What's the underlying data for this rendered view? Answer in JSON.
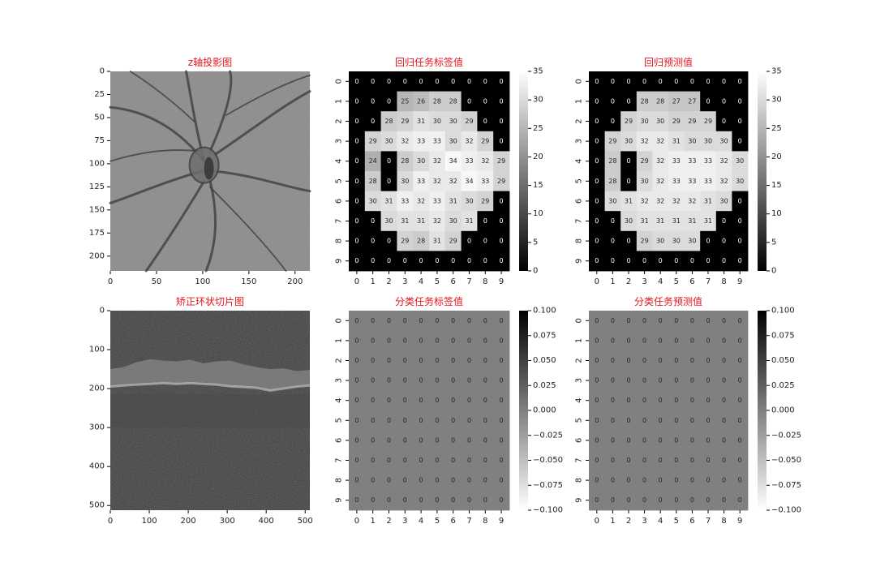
{
  "chart_data": [
    {
      "type": "image",
      "title": "z轴投影图",
      "x_ticks": [
        "0",
        "50",
        "100",
        "150",
        "200"
      ],
      "y_ticks": [
        "0",
        "25",
        "50",
        "75",
        "100",
        "125",
        "150",
        "175",
        "200"
      ],
      "xlim": [
        0,
        216
      ],
      "ylim": [
        216,
        0
      ],
      "content": "grayscale fundus en-face projection with retinal vessels and optic disc"
    },
    {
      "type": "heatmap",
      "title": "回归任务标签值",
      "x_ticks": [
        "0",
        "1",
        "2",
        "3",
        "4",
        "5",
        "6",
        "7",
        "8",
        "9"
      ],
      "y_ticks": [
        "0",
        "1",
        "2",
        "3",
        "4",
        "5",
        "6",
        "7",
        "8",
        "9"
      ],
      "colormap": "gray",
      "vmin": 0,
      "vmax": 35,
      "colorbar_ticks": [
        "0",
        "5",
        "10",
        "15",
        "20",
        "25",
        "30",
        "35"
      ],
      "values": [
        [
          0,
          0,
          0,
          0,
          0,
          0,
          0,
          0,
          0,
          0
        ],
        [
          0,
          0,
          0,
          25,
          26,
          28,
          28,
          0,
          0,
          0
        ],
        [
          0,
          0,
          28,
          29,
          31,
          30,
          30,
          29,
          0,
          0
        ],
        [
          0,
          29,
          30,
          32,
          33,
          33,
          30,
          32,
          29,
          0
        ],
        [
          0,
          24,
          0,
          28,
          30,
          32,
          34,
          33,
          32,
          29
        ],
        [
          0,
          28,
          0,
          30,
          33,
          32,
          32,
          34,
          33,
          29
        ],
        [
          0,
          30,
          31,
          33,
          32,
          33,
          31,
          30,
          29,
          0
        ],
        [
          0,
          0,
          30,
          31,
          31,
          32,
          30,
          31,
          0,
          0
        ],
        [
          0,
          0,
          0,
          29,
          28,
          31,
          29,
          0,
          0,
          0
        ],
        [
          0,
          0,
          0,
          0,
          0,
          0,
          0,
          0,
          0,
          0
        ]
      ]
    },
    {
      "type": "heatmap",
      "title": "回归预测值",
      "x_ticks": [
        "0",
        "1",
        "2",
        "3",
        "4",
        "5",
        "6",
        "7",
        "8",
        "9"
      ],
      "y_ticks": [
        "0",
        "1",
        "2",
        "3",
        "4",
        "5",
        "6",
        "7",
        "8",
        "9"
      ],
      "colormap": "gray",
      "vmin": 0,
      "vmax": 35,
      "colorbar_ticks": [
        "0",
        "5",
        "10",
        "15",
        "20",
        "25",
        "30",
        "35"
      ],
      "values": [
        [
          0,
          0,
          0,
          0,
          0,
          0,
          0,
          0,
          0,
          0
        ],
        [
          0,
          0,
          0,
          28,
          28,
          27,
          27,
          0,
          0,
          0
        ],
        [
          0,
          0,
          29,
          30,
          30,
          29,
          29,
          29,
          0,
          0
        ],
        [
          0,
          29,
          30,
          32,
          32,
          31,
          30,
          30,
          30,
          0
        ],
        [
          0,
          28,
          0,
          29,
          32,
          33,
          33,
          33,
          32,
          30
        ],
        [
          0,
          28,
          0,
          30,
          32,
          33,
          33,
          33,
          32,
          30
        ],
        [
          0,
          30,
          31,
          32,
          32,
          32,
          32,
          31,
          30,
          0
        ],
        [
          0,
          0,
          30,
          31,
          31,
          31,
          31,
          31,
          0,
          0
        ],
        [
          0,
          0,
          0,
          29,
          30,
          30,
          30,
          0,
          0,
          0
        ],
        [
          0,
          0,
          0,
          0,
          0,
          0,
          0,
          0,
          0,
          0
        ]
      ]
    },
    {
      "type": "image",
      "title": "矫正环状切片图",
      "x_ticks": [
        "0",
        "100",
        "200",
        "300",
        "400",
        "500"
      ],
      "y_ticks": [
        "0",
        "100",
        "200",
        "300",
        "400",
        "500"
      ],
      "xlim": [
        0,
        512
      ],
      "ylim": [
        512,
        0
      ],
      "content": "grayscale circular OCT B-scan slice with bright retinal layer band"
    },
    {
      "type": "heatmap",
      "title": "分类任务标签值",
      "x_ticks": [
        "0",
        "1",
        "2",
        "3",
        "4",
        "5",
        "6",
        "7",
        "8",
        "9"
      ],
      "y_ticks": [
        "0",
        "1",
        "2",
        "3",
        "4",
        "5",
        "6",
        "7",
        "8",
        "9"
      ],
      "colormap": "gray_r",
      "vmin": -0.1,
      "vmax": 0.1,
      "colorbar_ticks": [
        "0.100",
        "0.075",
        "0.050",
        "0.025",
        "0.000",
        "−0.025",
        "−0.050",
        "−0.075",
        "−0.100"
      ],
      "values": [
        [
          0,
          0,
          0,
          0,
          0,
          0,
          0,
          0,
          0,
          0
        ],
        [
          0,
          0,
          0,
          0,
          0,
          0,
          0,
          0,
          0,
          0
        ],
        [
          0,
          0,
          0,
          0,
          0,
          0,
          0,
          0,
          0,
          0
        ],
        [
          0,
          0,
          0,
          0,
          0,
          0,
          0,
          0,
          0,
          0
        ],
        [
          0,
          0,
          0,
          0,
          0,
          0,
          0,
          0,
          0,
          0
        ],
        [
          0,
          0,
          0,
          0,
          0,
          0,
          0,
          0,
          0,
          0
        ],
        [
          0,
          0,
          0,
          0,
          0,
          0,
          0,
          0,
          0,
          0
        ],
        [
          0,
          0,
          0,
          0,
          0,
          0,
          0,
          0,
          0,
          0
        ],
        [
          0,
          0,
          0,
          0,
          0,
          0,
          0,
          0,
          0,
          0
        ],
        [
          0,
          0,
          0,
          0,
          0,
          0,
          0,
          0,
          0,
          0
        ]
      ]
    },
    {
      "type": "heatmap",
      "title": "分类任务预测值",
      "x_ticks": [
        "0",
        "1",
        "2",
        "3",
        "4",
        "5",
        "6",
        "7",
        "8",
        "9"
      ],
      "y_ticks": [
        "0",
        "1",
        "2",
        "3",
        "4",
        "5",
        "6",
        "7",
        "8",
        "9"
      ],
      "colormap": "gray_r",
      "vmin": -0.1,
      "vmax": 0.1,
      "colorbar_ticks": [
        "0.100",
        "0.075",
        "0.050",
        "0.025",
        "0.000",
        "−0.025",
        "−0.050",
        "−0.075",
        "−0.100"
      ],
      "values": [
        [
          0,
          0,
          0,
          0,
          0,
          0,
          0,
          0,
          0,
          0
        ],
        [
          0,
          0,
          0,
          0,
          0,
          0,
          0,
          0,
          0,
          0
        ],
        [
          0,
          0,
          0,
          0,
          0,
          0,
          0,
          0,
          0,
          0
        ],
        [
          0,
          0,
          0,
          0,
          0,
          0,
          0,
          0,
          0,
          0
        ],
        [
          0,
          0,
          0,
          0,
          0,
          0,
          0,
          0,
          0,
          0
        ],
        [
          0,
          0,
          0,
          0,
          0,
          0,
          0,
          0,
          0,
          0
        ],
        [
          0,
          0,
          0,
          0,
          0,
          0,
          0,
          0,
          0,
          0
        ],
        [
          0,
          0,
          0,
          0,
          0,
          0,
          0,
          0,
          0,
          0
        ],
        [
          0,
          0,
          0,
          0,
          0,
          0,
          0,
          0,
          0,
          0
        ],
        [
          0,
          0,
          0,
          0,
          0,
          0,
          0,
          0,
          0,
          0
        ]
      ]
    }
  ],
  "style": {
    "title_color": "#e8141b",
    "text_color": "#222222",
    "fundus_background": "#8a8a8a",
    "vessel_color": "#3a3a3a",
    "oct_background": "#3c3c3c",
    "oct_band_color": "#9a9a9a"
  }
}
